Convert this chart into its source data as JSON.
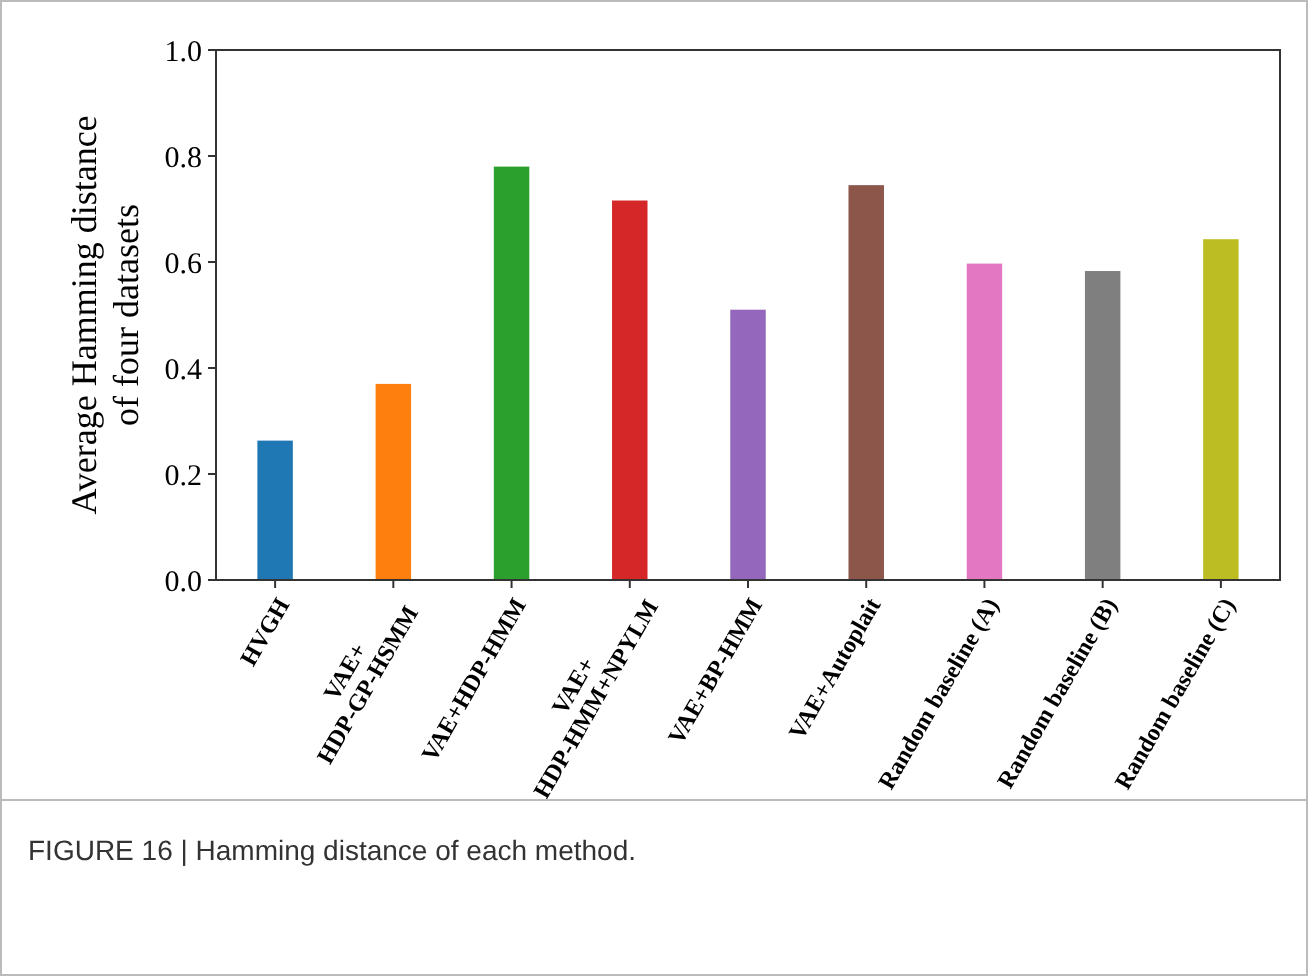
{
  "chart_data": {
    "type": "bar",
    "ylabel": "Average Hamming distance\nof four datasets",
    "categories": [
      "HVGH",
      "VAE+\nHDP-GP-HSMM",
      "VAE+HDP-HMM",
      "VAE+\nHDP-HMM+NPYLM",
      "VAE+BP-HMM",
      "VAE+Autoplait",
      "Random baseline (A)",
      "Random baseline (B)",
      "Random baseline (C)"
    ],
    "values": [
      0.263,
      0.37,
      0.78,
      0.716,
      0.51,
      0.745,
      0.597,
      0.583,
      0.643
    ],
    "colors": [
      "#1f77b4",
      "#ff7f0e",
      "#2ca02c",
      "#d62728",
      "#9467bd",
      "#8c564b",
      "#e377c2",
      "#7f7f7f",
      "#bcbd22"
    ],
    "ylim": [
      0,
      1
    ],
    "yticks": [
      {
        "value": 0,
        "label": "0.0"
      },
      {
        "value": 0.2,
        "label": "0.2"
      },
      {
        "value": 0.4,
        "label": "0.4"
      },
      {
        "value": 0.6,
        "label": "0.6"
      },
      {
        "value": 0.8,
        "label": "0.8"
      },
      {
        "value": 1,
        "label": "1.0"
      }
    ],
    "grid": false,
    "annotations": [
      "FIGURE 16 | Hamming distance of each method."
    ]
  }
}
